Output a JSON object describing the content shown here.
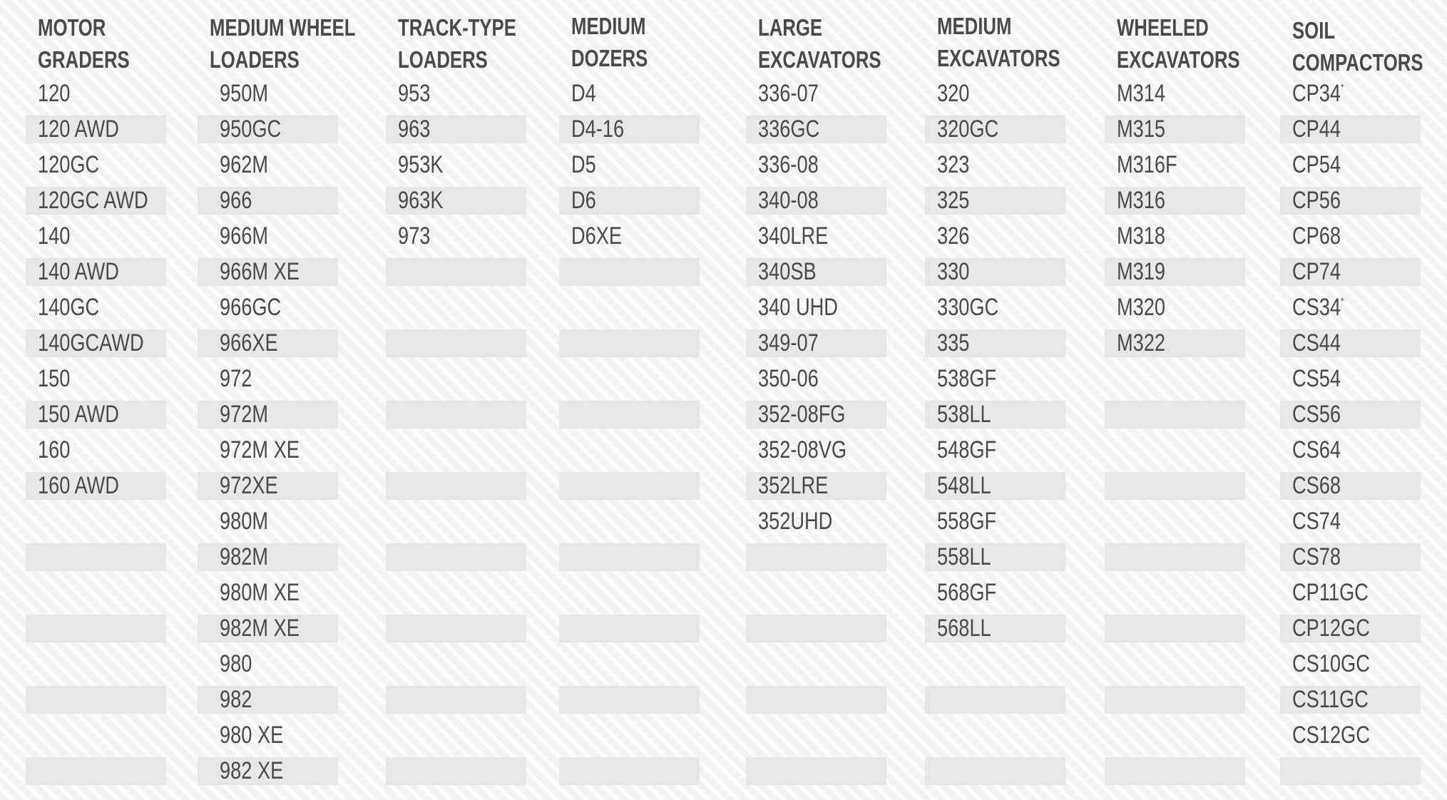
{
  "colors": {
    "text": "#4a4a4b",
    "band": "#e6e7e9",
    "background": "#f3f3f3",
    "stripe": "#fcfcfc"
  },
  "columns": [
    {
      "header": [
        "MOTOR",
        "GRADERS"
      ],
      "items": [
        "120",
        "120 AWD",
        "120GC",
        "120GC AWD",
        "140",
        "140 AWD",
        "140GC",
        "140GCAWD",
        "150",
        "150 AWD",
        "160",
        "160 AWD"
      ]
    },
    {
      "header": [
        "MEDIUM WHEEL",
        "LOADERS"
      ],
      "items": [
        "950M",
        "950GC",
        "962M",
        "966",
        "966M",
        "966M XE",
        "966GC",
        "966XE",
        "972",
        "972M",
        "972M XE",
        "972XE",
        "980M",
        "982M",
        "980M XE",
        "982M XE",
        "980",
        "982",
        "980 XE",
        "982 XE"
      ]
    },
    {
      "header": [
        "TRACK-TYPE",
        "LOADERS"
      ],
      "items": [
        "953",
        "963",
        "953K",
        "963K",
        "973"
      ]
    },
    {
      "header": [
        "MEDIUM",
        "DOZERS"
      ],
      "items": [
        "D4",
        "D4-16",
        "D5",
        "D6",
        "D6XE"
      ]
    },
    {
      "header": [
        "LARGE",
        "EXCAVATORS"
      ],
      "items": [
        "336-07",
        "336GC",
        "336-08",
        "340-08",
        "340LRE",
        "340SB",
        "340 UHD",
        "349-07",
        "350-06",
        "352-08FG",
        "352-08VG",
        "352LRE",
        "352UHD"
      ]
    },
    {
      "header": [
        "MEDIUM",
        "EXCAVATORS"
      ],
      "items": [
        "320",
        "320GC",
        "323",
        "325",
        "326",
        "330",
        "330GC",
        "335",
        "538GF",
        "538LL",
        "548GF",
        "548LL",
        "558GF",
        "558LL",
        "568GF",
        "568LL"
      ]
    },
    {
      "header": [
        "WHEELED",
        "EXCAVATORS"
      ],
      "items": [
        "M314",
        "M315",
        "M316F",
        "M316",
        "M318",
        "M319",
        "M320",
        "M322"
      ]
    },
    {
      "header": [
        "SOIL",
        "COMPACTORS"
      ],
      "items": [
        "CP34*",
        "CP44",
        "CP54",
        "CP56",
        "CP68",
        "CP74",
        "CS34*",
        "CS44",
        "CS54",
        "CS56",
        "CS64",
        "CS68",
        "CS74",
        "CS78",
        "CP11GC",
        "CP12GC",
        "CS10GC",
        "CS11GC",
        "CS12GC"
      ]
    }
  ]
}
